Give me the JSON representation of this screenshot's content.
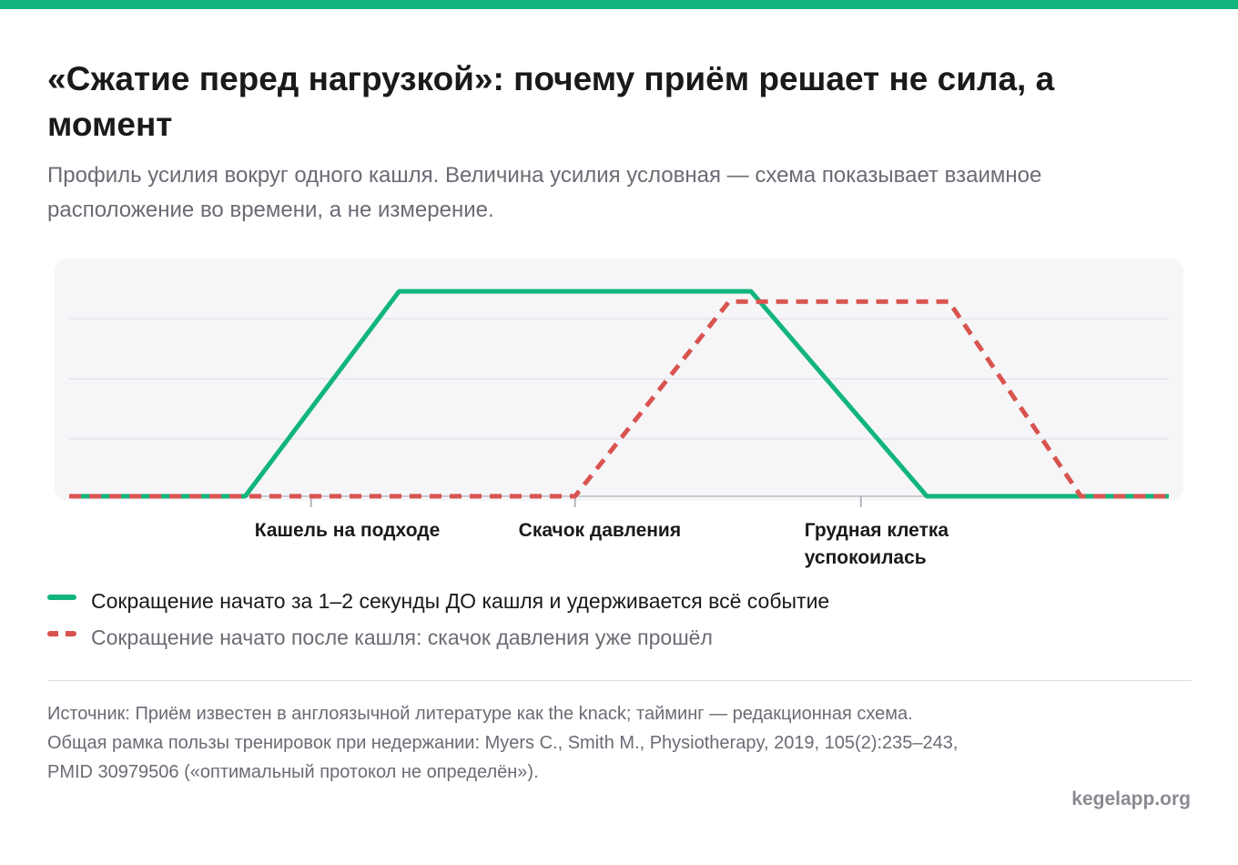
{
  "title": "«Сжатие перед нагрузкой»: почему приём решает не сила, а момент",
  "subtitle": "Профиль усилия вокруг одного кашля. Величина усилия условная — схема показывает взаимное расположение во времени, а не измерение.",
  "colors": {
    "accent": "#12b57c",
    "green_series": "#12b57c",
    "red_series": "#d9534f"
  },
  "chart_data": {
    "type": "line",
    "xlim": [
      0,
      100
    ],
    "ylim": [
      0,
      100
    ],
    "grid": true,
    "x_ticks": [
      {
        "x": 22,
        "label": "Кашель на подходе"
      },
      {
        "x": 46,
        "label": "Скачок давления"
      },
      {
        "x": 72,
        "label": "Грудная клетка успокоилась"
      }
    ],
    "series": [
      {
        "name": "Сокращение начато за 1–2 секунды ДО кашля и удерживается всё событие",
        "style": "solid",
        "color": "#12b57c",
        "points": [
          [
            0,
            0
          ],
          [
            16,
            0
          ],
          [
            30,
            100
          ],
          [
            62,
            100
          ],
          [
            78,
            0
          ],
          [
            100,
            0
          ]
        ]
      },
      {
        "name": "Сокращение начато после кашля: скачок давления уже прошёл",
        "style": "dashed",
        "color": "#d9534f",
        "points": [
          [
            0,
            0
          ],
          [
            46,
            0
          ],
          [
            60,
            95
          ],
          [
            80,
            95
          ],
          [
            92,
            0
          ],
          [
            100,
            0
          ]
        ]
      }
    ]
  },
  "legend": [
    {
      "label": "Сокращение начато за 1–2 секунды ДО кашля и удерживается всё событие"
    },
    {
      "label": "Сокращение начато после кашля: скачок давления уже прошёл"
    }
  ],
  "source": "Источник: Приём известен в англоязычной литературе как the knack; тайминг — редакционная схема. Общая рамка пользы тренировок при недержании: Myers C., Smith M., Physiotherapy, 2019, 105(2):235–243, PMID 30979506 («оптимальный протокол не определён»).",
  "brand": "kegelapp.org"
}
